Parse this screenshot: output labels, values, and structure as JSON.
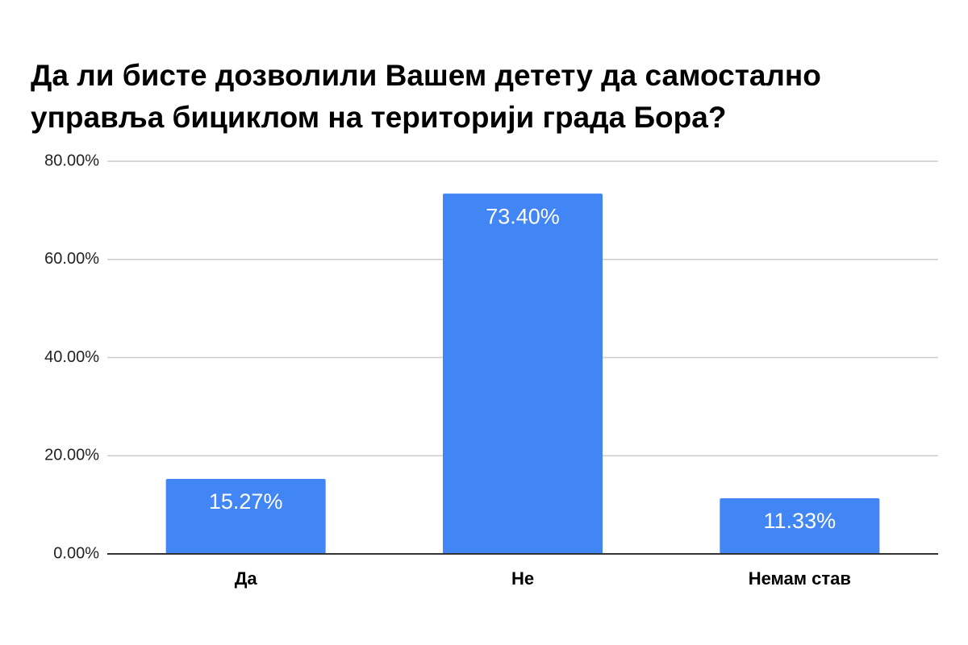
{
  "chart_data": {
    "type": "bar",
    "title": "Да ли бисте дозволили Вашем детету да самостално управља бициклом на територији града Бора?",
    "xlabel": "",
    "ylabel": "",
    "categories": [
      "Да",
      "Не",
      "Немам став"
    ],
    "values": [
      15.27,
      73.4,
      11.33
    ],
    "data_labels": [
      "15.27%",
      "73.40%",
      "11.33%"
    ],
    "ylim": [
      0,
      80
    ],
    "yticks": [
      0,
      20,
      40,
      60,
      80
    ],
    "ytick_labels": [
      "0.00%",
      "20.00%",
      "40.00%",
      "60.00%",
      "80.00%"
    ],
    "grid": true,
    "legend": "none",
    "colors": {
      "bar": "#4285f4",
      "grid": "#cccccc",
      "axis": "#333333"
    }
  }
}
